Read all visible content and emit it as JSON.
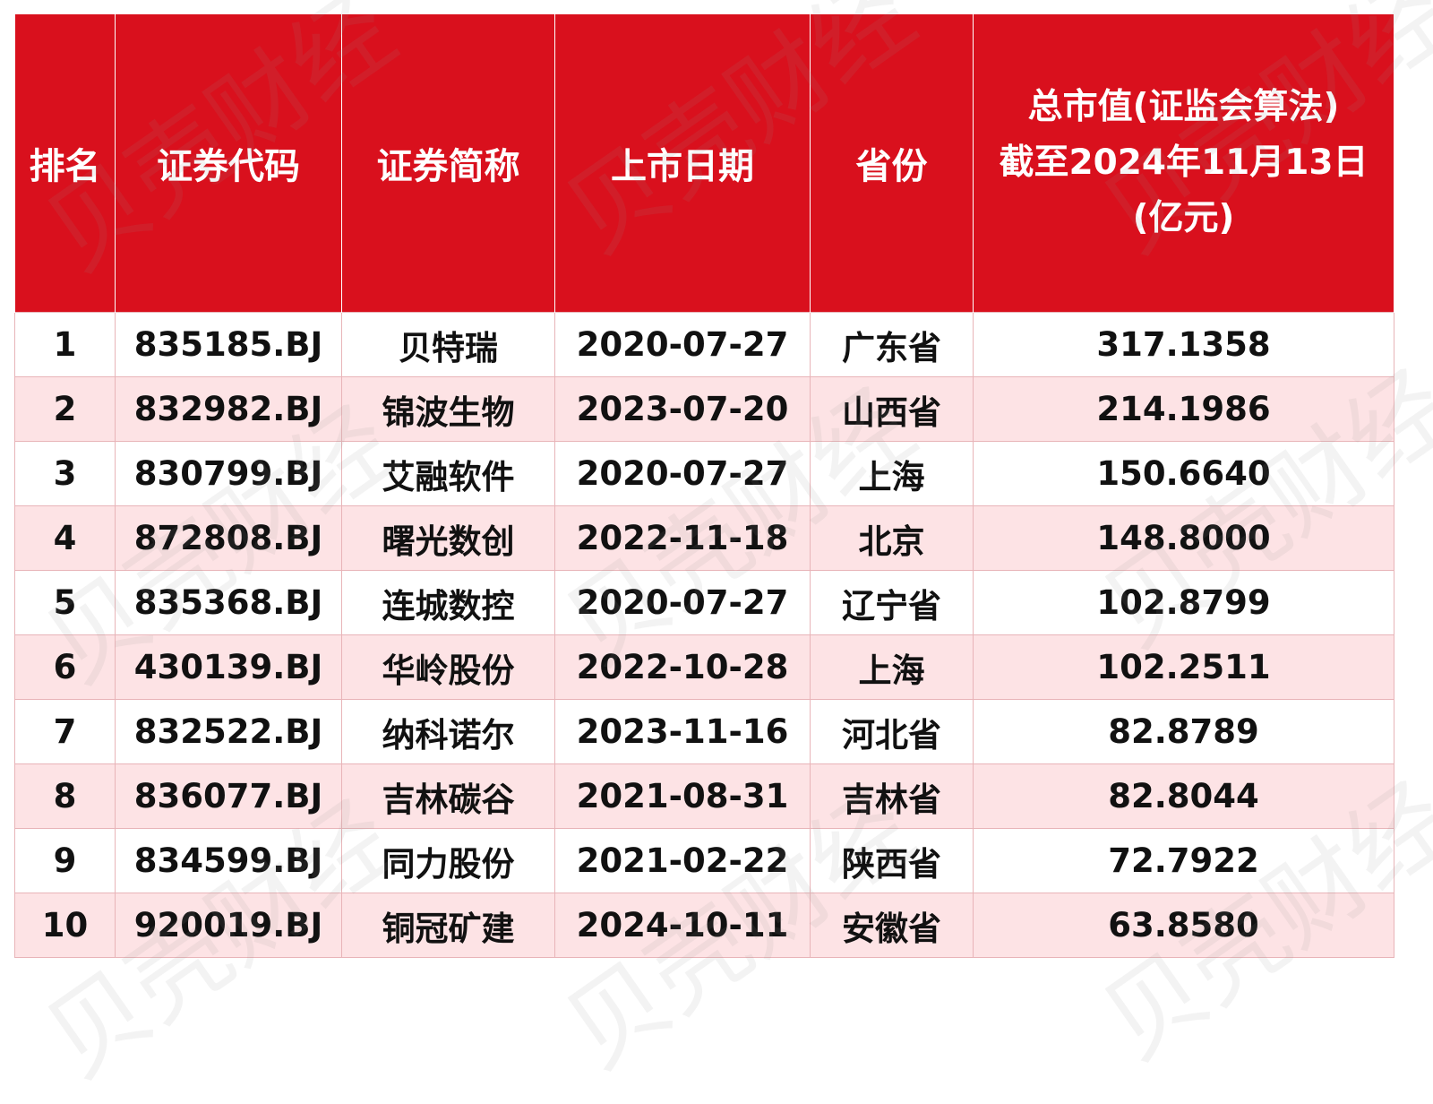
{
  "table": {
    "headers": {
      "rank": "排名",
      "code": "证券代码",
      "name": "证券简称",
      "date": "上市日期",
      "province": "省份",
      "cap_line1": "总市值(证监会算法)",
      "cap_line2": "截至2024年11月13日",
      "cap_line3": "(亿元)"
    },
    "rows": [
      {
        "rank": "1",
        "code": "835185.BJ",
        "name": "贝特瑞",
        "date": "2020-07-27",
        "province": "广东省",
        "cap": "317.1358"
      },
      {
        "rank": "2",
        "code": "832982.BJ",
        "name": "锦波生物",
        "date": "2023-07-20",
        "province": "山西省",
        "cap": "214.1986"
      },
      {
        "rank": "3",
        "code": "830799.BJ",
        "name": "艾融软件",
        "date": "2020-07-27",
        "province": "上海",
        "cap": "150.6640"
      },
      {
        "rank": "4",
        "code": "872808.BJ",
        "name": "曙光数创",
        "date": "2022-11-18",
        "province": "北京",
        "cap": "148.8000"
      },
      {
        "rank": "5",
        "code": "835368.BJ",
        "name": "连城数控",
        "date": "2020-07-27",
        "province": "辽宁省",
        "cap": "102.8799"
      },
      {
        "rank": "6",
        "code": "430139.BJ",
        "name": "华岭股份",
        "date": "2022-10-28",
        "province": "上海",
        "cap": "102.2511"
      },
      {
        "rank": "7",
        "code": "832522.BJ",
        "name": "纳科诺尔",
        "date": "2023-11-16",
        "province": "河北省",
        "cap": "82.8789"
      },
      {
        "rank": "8",
        "code": "836077.BJ",
        "name": "吉林碳谷",
        "date": "2021-08-31",
        "province": "吉林省",
        "cap": "82.8044"
      },
      {
        "rank": "9",
        "code": "834599.BJ",
        "name": "同力股份",
        "date": "2021-02-22",
        "province": "陕西省",
        "cap": "72.7922"
      },
      {
        "rank": "10",
        "code": "920019.BJ",
        "name": "铜冠矿建",
        "date": "2024-10-11",
        "province": "安徽省",
        "cap": "63.8580"
      }
    ]
  },
  "watermark": {
    "text": "贝壳财经"
  }
}
